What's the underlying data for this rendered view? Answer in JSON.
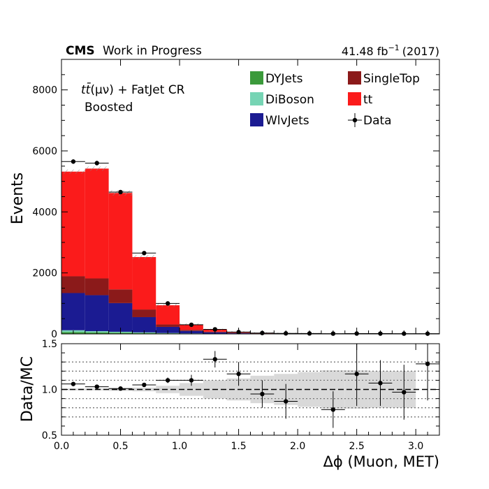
{
  "header": {
    "experiment": "CMS",
    "status": "Work in Progress",
    "lumi_value": "41.48 fb",
    "lumi_exp": "−1",
    "lumi_year": "(2017)"
  },
  "region": {
    "line1_prefix": "t",
    "line1_mid": "t̄",
    "line1_rest": "(μν) + FatJet CR",
    "line2": "Boosted"
  },
  "legend": {
    "items": [
      {
        "key": "dyjets",
        "label": "DYJets",
        "color": "#3b9a3b",
        "kind": "box"
      },
      {
        "key": "diboson",
        "label": "DiBoson",
        "color": "#76d4b4",
        "kind": "box"
      },
      {
        "key": "wlvjets",
        "label": "WlvJets",
        "color": "#1b1b92",
        "kind": "box"
      },
      {
        "key": "singletop",
        "label": "SingleTop",
        "color": "#8b1a1a",
        "kind": "box"
      },
      {
        "key": "tt",
        "label": "tt",
        "color": "#fb1b1b",
        "kind": "box"
      },
      {
        "key": "data",
        "label": "Data",
        "color": "#000000",
        "kind": "marker"
      }
    ]
  },
  "chart_data": {
    "type": "bar",
    "stacked": true,
    "bin_edges": [
      0.0,
      0.2,
      0.4,
      0.6,
      0.8,
      1.0,
      1.2,
      1.4,
      1.6,
      1.8,
      2.0,
      2.2,
      2.4,
      2.6,
      2.8,
      3.0,
      3.2
    ],
    "xlabel": "Δϕ (Muon, MET)",
    "ylabel": "Events",
    "xlim": [
      0,
      3.2
    ],
    "ylim": [
      0,
      9000
    ],
    "x_ticks": [
      "0.0",
      "0.5",
      "1.0",
      "1.5",
      "2.0",
      "2.5",
      "3.0"
    ],
    "y_ticks": [
      "0",
      "2000",
      "4000",
      "6000",
      "8000"
    ],
    "series": [
      {
        "name": "DYJets",
        "values": [
          60,
          50,
          40,
          30,
          20,
          12,
          8,
          5,
          3,
          2,
          1,
          1,
          1,
          1,
          1,
          1
        ]
      },
      {
        "name": "DiBoson",
        "values": [
          60,
          40,
          30,
          20,
          10,
          6,
          4,
          2,
          1,
          1,
          1,
          0,
          0,
          0,
          0,
          0
        ]
      },
      {
        "name": "WlvJets",
        "values": [
          1220,
          1180,
          940,
          500,
          200,
          80,
          40,
          20,
          10,
          6,
          4,
          3,
          2,
          2,
          2,
          2
        ]
      },
      {
        "name": "SingleTop",
        "values": [
          550,
          550,
          450,
          250,
          80,
          35,
          20,
          10,
          6,
          4,
          3,
          2,
          2,
          2,
          1,
          1
        ]
      },
      {
        "name": "tt",
        "values": [
          3430,
          3600,
          3160,
          1720,
          630,
          175,
          68,
          33,
          15,
          9,
          6,
          4,
          3,
          4,
          3,
          3
        ]
      }
    ],
    "data": {
      "name": "Data",
      "x": [
        0.1,
        0.3,
        0.5,
        0.7,
        0.9,
        1.1,
        1.3,
        1.5,
        1.7,
        1.9,
        2.1,
        2.3,
        2.5,
        2.7,
        2.9,
        3.1
      ],
      "y": [
        5650,
        5600,
        4650,
        2650,
        1000,
        300,
        150,
        60,
        30,
        18,
        15,
        10,
        12,
        11,
        9,
        8
      ]
    },
    "ratio": {
      "ylabel": "Data/MC",
      "ylim": [
        0.5,
        1.5
      ],
      "y_ticks": [
        "0.5",
        "1.0",
        "1.5"
      ],
      "gridlines": [
        0.7,
        0.8,
        0.9,
        1.1,
        1.2,
        1.3
      ],
      "points": [
        {
          "x": 0.1,
          "y": 1.06,
          "err": 0.01
        },
        {
          "x": 0.3,
          "y": 1.03,
          "err": 0.01
        },
        {
          "x": 0.5,
          "y": 1.01,
          "err": 0.01
        },
        {
          "x": 0.7,
          "y": 1.05,
          "err": 0.02
        },
        {
          "x": 0.9,
          "y": 1.1,
          "err": 0.03
        },
        {
          "x": 1.1,
          "y": 1.1,
          "err": 0.06
        },
        {
          "x": 1.3,
          "y": 1.33,
          "err": 0.09
        },
        {
          "x": 1.5,
          "y": 1.17,
          "err": 0.13
        },
        {
          "x": 1.7,
          "y": 0.95,
          "err": 0.15
        },
        {
          "x": 1.9,
          "y": 0.87,
          "err": 0.19
        },
        {
          "x": 2.3,
          "y": 0.78,
          "err": 0.2
        },
        {
          "x": 2.5,
          "y": 1.17,
          "err": 0.35
        },
        {
          "x": 2.7,
          "y": 1.07,
          "err": 0.25
        },
        {
          "x": 2.9,
          "y": 0.97,
          "err": 0.3
        },
        {
          "x": 3.1,
          "y": 1.28,
          "err": 0.4
        }
      ],
      "mc_uncertainty": [
        0.01,
        0.01,
        0.015,
        0.02,
        0.04,
        0.07,
        0.1,
        0.12,
        0.15,
        0.17,
        0.19,
        0.21,
        0.21,
        0.2,
        0.2,
        0.0
      ]
    }
  }
}
